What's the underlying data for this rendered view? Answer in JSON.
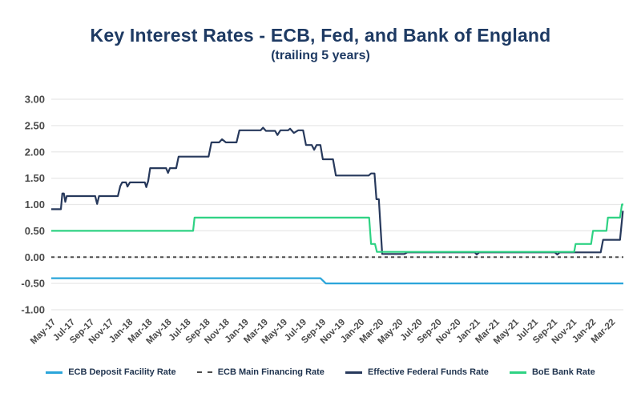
{
  "header": {
    "title": "Key Interest Rates - ECB, Fed, and Bank of England",
    "subtitle": "(trailing 5 years)"
  },
  "chart_data": {
    "type": "line",
    "title": "Key Interest Rates - ECB, Fed, and Bank of England (trailing 5 years)",
    "xlabel": "",
    "ylabel": "",
    "x_unit": "months since May-2017",
    "x_range_months": [
      0,
      59.3
    ],
    "x_tick_every_months": 2,
    "x_tick_labels": [
      "May-17",
      "Jul-17",
      "Sep-17",
      "Nov-17",
      "Jan-18",
      "Mar-18",
      "May-18",
      "Jul-18",
      "Sep-18",
      "Nov-18",
      "Jan-19",
      "Mar-19",
      "May-19",
      "Jul-19",
      "Sep-19",
      "Nov-19",
      "Jan-20",
      "Mar-20",
      "May-20",
      "Jul-20",
      "Sep-20",
      "Nov-20",
      "Jan-21",
      "Mar-21",
      "May-21",
      "Jul-21",
      "Sep-21",
      "Nov-21",
      "Jan-22",
      "Mar-22"
    ],
    "y_tick_labels": [
      "3.00",
      "2.50",
      "2.00",
      "1.50",
      "1.00",
      "0.50",
      "0.00",
      "-0.50",
      "-1.00"
    ],
    "y_tick_values": [
      3.0,
      2.5,
      2.0,
      1.5,
      1.0,
      0.5,
      0.0,
      -0.5,
      -1.0
    ],
    "ylim": [
      -1.0,
      3.0
    ],
    "grid": "horizontal-only",
    "legend_position": "bottom",
    "colors": {
      "title": "#1e3a63",
      "axis_labels": "#4a4a4a",
      "gridline": "#e8e8e8"
    },
    "series": [
      {
        "name": "ECB Deposit Facility Rate",
        "color": "#2aa5da",
        "style": "solid",
        "points": [
          [
            0,
            -0.4
          ],
          [
            27.9,
            -0.4
          ],
          [
            28.45,
            -0.5
          ],
          [
            59.3,
            -0.5
          ]
        ]
      },
      {
        "name": "ECB Main Financing Rate",
        "color": "#4d4d4d",
        "style": "dashed",
        "points": [
          [
            0,
            0.0
          ],
          [
            59.3,
            0.0
          ]
        ]
      },
      {
        "name": "Effective Federal Funds Rate",
        "color": "#27395c",
        "style": "solid",
        "points": [
          [
            0,
            0.91
          ],
          [
            1.0,
            0.91
          ],
          [
            1.15,
            1.21
          ],
          [
            1.3,
            1.21
          ],
          [
            1.45,
            1.05
          ],
          [
            1.6,
            1.16
          ],
          [
            4.55,
            1.16
          ],
          [
            4.75,
            1.01
          ],
          [
            4.95,
            1.16
          ],
          [
            6.9,
            1.16
          ],
          [
            7.15,
            1.35
          ],
          [
            7.35,
            1.42
          ],
          [
            7.75,
            1.42
          ],
          [
            7.9,
            1.34
          ],
          [
            8.15,
            1.42
          ],
          [
            9.7,
            1.42
          ],
          [
            9.85,
            1.33
          ],
          [
            10.05,
            1.45
          ],
          [
            10.25,
            1.69
          ],
          [
            11.9,
            1.69
          ],
          [
            12.1,
            1.6
          ],
          [
            12.3,
            1.69
          ],
          [
            12.95,
            1.69
          ],
          [
            13.2,
            1.91
          ],
          [
            16.3,
            1.91
          ],
          [
            16.6,
            2.18
          ],
          [
            17.4,
            2.18
          ],
          [
            17.7,
            2.24
          ],
          [
            18.1,
            2.18
          ],
          [
            19.2,
            2.18
          ],
          [
            19.5,
            2.41
          ],
          [
            21.7,
            2.41
          ],
          [
            21.95,
            2.46
          ],
          [
            22.25,
            2.4
          ],
          [
            23.2,
            2.4
          ],
          [
            23.45,
            2.32
          ],
          [
            23.75,
            2.41
          ],
          [
            24.55,
            2.41
          ],
          [
            24.75,
            2.44
          ],
          [
            25.15,
            2.36
          ],
          [
            25.6,
            2.41
          ],
          [
            26.1,
            2.41
          ],
          [
            26.4,
            2.13
          ],
          [
            27.0,
            2.13
          ],
          [
            27.25,
            2.04
          ],
          [
            27.5,
            2.13
          ],
          [
            27.9,
            2.13
          ],
          [
            28.15,
            1.86
          ],
          [
            29.2,
            1.86
          ],
          [
            29.5,
            1.55
          ],
          [
            32.9,
            1.55
          ],
          [
            33.15,
            1.59
          ],
          [
            33.5,
            1.59
          ],
          [
            33.7,
            1.1
          ],
          [
            33.95,
            1.1
          ],
          [
            34.1,
            0.65
          ],
          [
            34.3,
            0.06
          ],
          [
            36.6,
            0.06
          ],
          [
            36.9,
            0.09
          ],
          [
            43.9,
            0.09
          ],
          [
            44.1,
            0.05
          ],
          [
            44.35,
            0.09
          ],
          [
            52.2,
            0.09
          ],
          [
            52.45,
            0.05
          ],
          [
            52.7,
            0.09
          ],
          [
            56.95,
            0.09
          ],
          [
            57.2,
            0.33
          ],
          [
            58.95,
            0.33
          ],
          [
            59.25,
            0.88
          ]
        ]
      },
      {
        "name": "BoE Bank Rate",
        "color": "#2ed283",
        "style": "solid",
        "points": [
          [
            0,
            0.5
          ],
          [
            14.7,
            0.5
          ],
          [
            14.85,
            0.75
          ],
          [
            32.95,
            0.75
          ],
          [
            33.15,
            0.25
          ],
          [
            33.55,
            0.25
          ],
          [
            33.75,
            0.1
          ],
          [
            54.2,
            0.1
          ],
          [
            54.35,
            0.25
          ],
          [
            55.95,
            0.25
          ],
          [
            56.15,
            0.5
          ],
          [
            57.55,
            0.5
          ],
          [
            57.7,
            0.75
          ],
          [
            58.95,
            0.75
          ],
          [
            59.15,
            1.0
          ],
          [
            59.3,
            1.0
          ]
        ]
      }
    ]
  }
}
